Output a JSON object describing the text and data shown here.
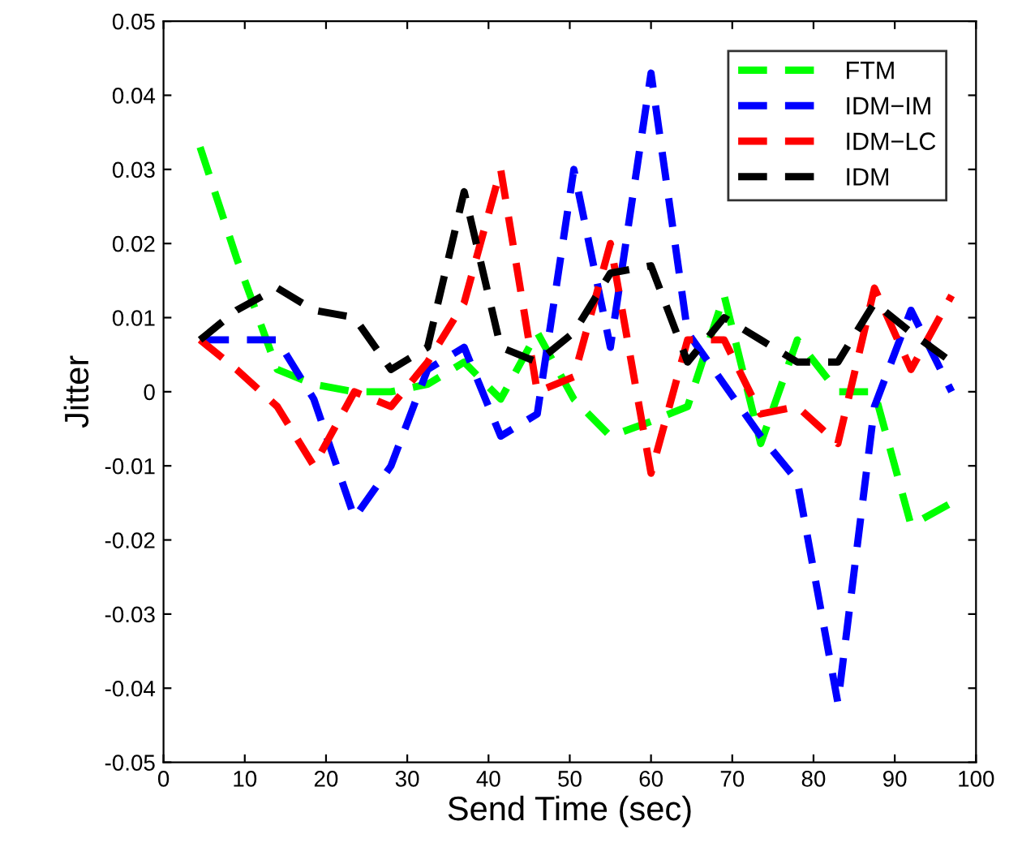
{
  "chart_data": {
    "type": "line",
    "xlabel": "Send Time (sec)",
    "ylabel": "Jitter",
    "x": [
      4.5,
      9,
      14,
      18.5,
      23.5,
      28,
      32.5,
      37,
      41.5,
      46,
      50.5,
      55,
      60,
      64.5,
      69,
      73.5,
      78,
      83,
      87.5,
      92,
      97
    ],
    "series": [
      {
        "name": "FTM",
        "color": "#00ff00",
        "values": [
          0.033,
          0.018,
          0.003,
          0.001,
          0,
          0,
          0.001,
          0.004,
          -0.001,
          0.008,
          -0.001,
          -0.006,
          -0.004,
          -0.002,
          0.013,
          -0.007,
          0.007,
          0,
          0,
          -0.018,
          -0.015
        ]
      },
      {
        "name": "IDM−IM",
        "color": "#0000ff",
        "values": [
          0.007,
          0.007,
          0.007,
          -0.001,
          -0.017,
          -0.01,
          0.003,
          0.006,
          -0.006,
          -0.003,
          0.03,
          0.006,
          0.043,
          0.008,
          0.001,
          -0.006,
          -0.012,
          -0.042,
          -0.002,
          0.011,
          0
        ]
      },
      {
        "name": "IDM−LC",
        "color": "#ff0000",
        "values": [
          0.007,
          0.003,
          -0.002,
          -0.01,
          0,
          -0.002,
          0.004,
          0.012,
          0.03,
          0,
          0.002,
          0.02,
          -0.011,
          0.007,
          0.007,
          -0.003,
          -0.002,
          -0.007,
          0.014,
          0.003,
          0.013
        ]
      },
      {
        "name": "IDM",
        "color": "#000000",
        "values": [
          0.007,
          0.011,
          0.014,
          0.011,
          0.01,
          0.003,
          0.006,
          0.027,
          0.006,
          0.004,
          0.008,
          0.016,
          0.017,
          0.004,
          0.01,
          0.007,
          0.004,
          0.004,
          0.012,
          0.008,
          0.004
        ]
      }
    ],
    "xlim": [
      0,
      100
    ],
    "xticks": [
      0,
      10,
      20,
      30,
      40,
      50,
      60,
      70,
      80,
      90,
      100
    ],
    "ylim": [
      -0.05,
      0.05
    ],
    "yticks": [
      -0.05,
      -0.04,
      -0.03,
      -0.02,
      -0.01,
      0,
      0.01,
      0.02,
      0.03,
      0.04,
      0.05
    ],
    "legend": "top right",
    "line_style": "dashed",
    "grid": false
  }
}
